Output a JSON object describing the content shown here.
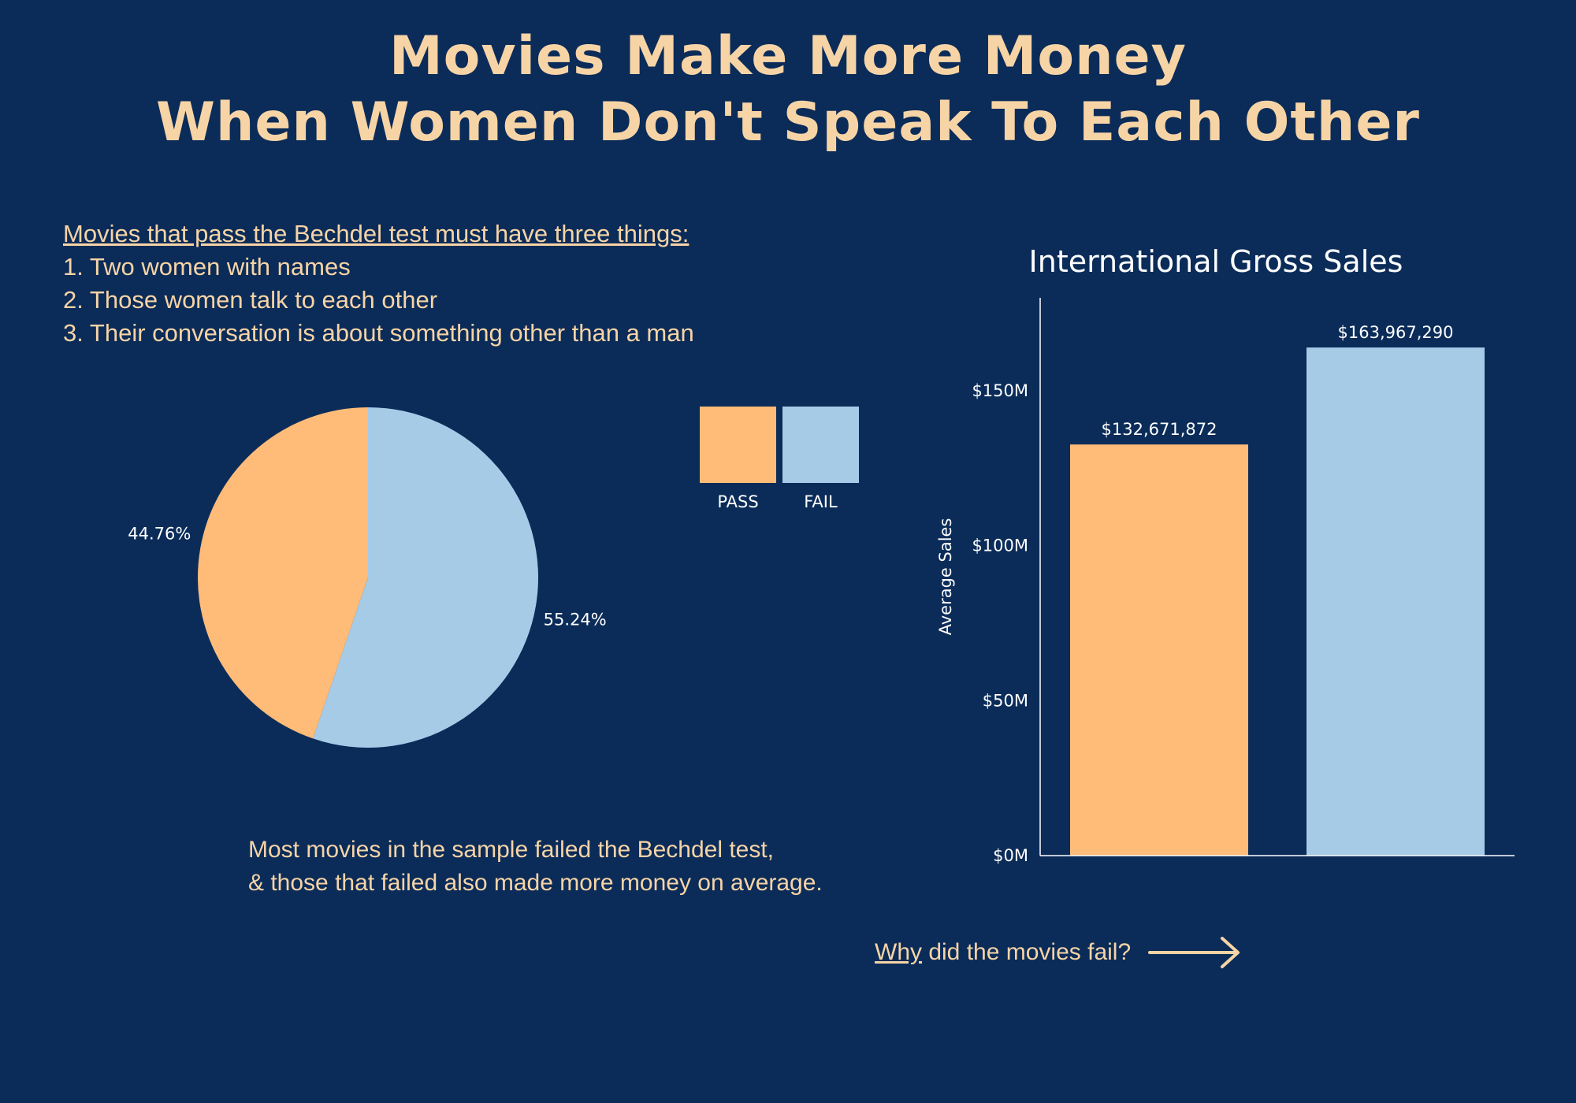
{
  "title": {
    "line1": "Movies Make More Money",
    "line2": "When Women Don't Speak To Each Other"
  },
  "rules": {
    "heading": "Movies that pass the Bechdel test must have three things:",
    "items": [
      "1. Two women with names",
      "2. Those women talk to each other",
      "3. Their conversation is about something other than a man"
    ]
  },
  "legend": [
    {
      "label": "PASS",
      "color": "#ffbb78"
    },
    {
      "label": "FAIL",
      "color": "#a6cbe7"
    }
  ],
  "caption": {
    "line1": "Most movies in the sample failed the Bechdel test,",
    "line2": "& those that failed also made more money on average."
  },
  "nav": {
    "why": "Why",
    "rest": " did the movies fail?",
    "icon": "right-arrow-icon"
  },
  "colors": {
    "background": "#0b2c59",
    "accent_text": "#f7d4a6",
    "pass": "#ffbb78",
    "fail": "#a6cbe7"
  },
  "chart_data": [
    {
      "type": "pie",
      "categories": [
        "PASS",
        "FAIL"
      ],
      "values": [
        44.76,
        55.24
      ],
      "labels": [
        "44.76%",
        "55.24%"
      ],
      "colors": [
        "#ffbb78",
        "#a6cbe7"
      ]
    },
    {
      "type": "bar",
      "title": "International Gross Sales",
      "ylabel": "Average Sales",
      "categories": [
        "PASS",
        "FAIL"
      ],
      "values": [
        132671872,
        163967290
      ],
      "value_labels": [
        "$132,671,872",
        "$163,967,290"
      ],
      "colors": [
        "#ffbb78",
        "#a6cbe7"
      ],
      "ylim": [
        0,
        180000000
      ],
      "yticks": [
        0,
        50000000,
        100000000,
        150000000
      ],
      "ytick_labels": [
        "$0M",
        "$50M",
        "$100M",
        "$150M"
      ],
      "grid": false
    }
  ]
}
